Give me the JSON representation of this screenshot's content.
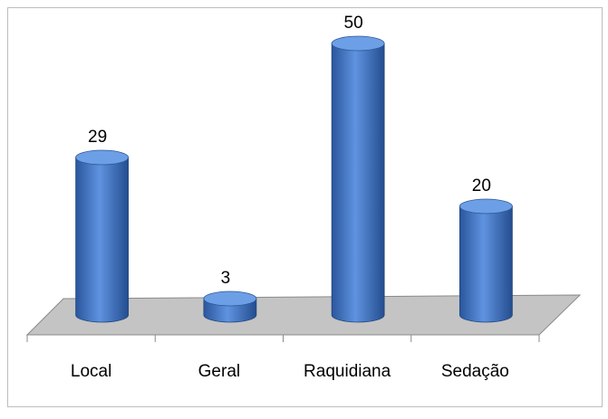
{
  "chart_data": {
    "type": "bar3d",
    "categories": [
      "Local",
      "Geral",
      "Raquidiana",
      "Sedação"
    ],
    "values": [
      29,
      3,
      50,
      20
    ],
    "color": "#3a6fc0"
  }
}
